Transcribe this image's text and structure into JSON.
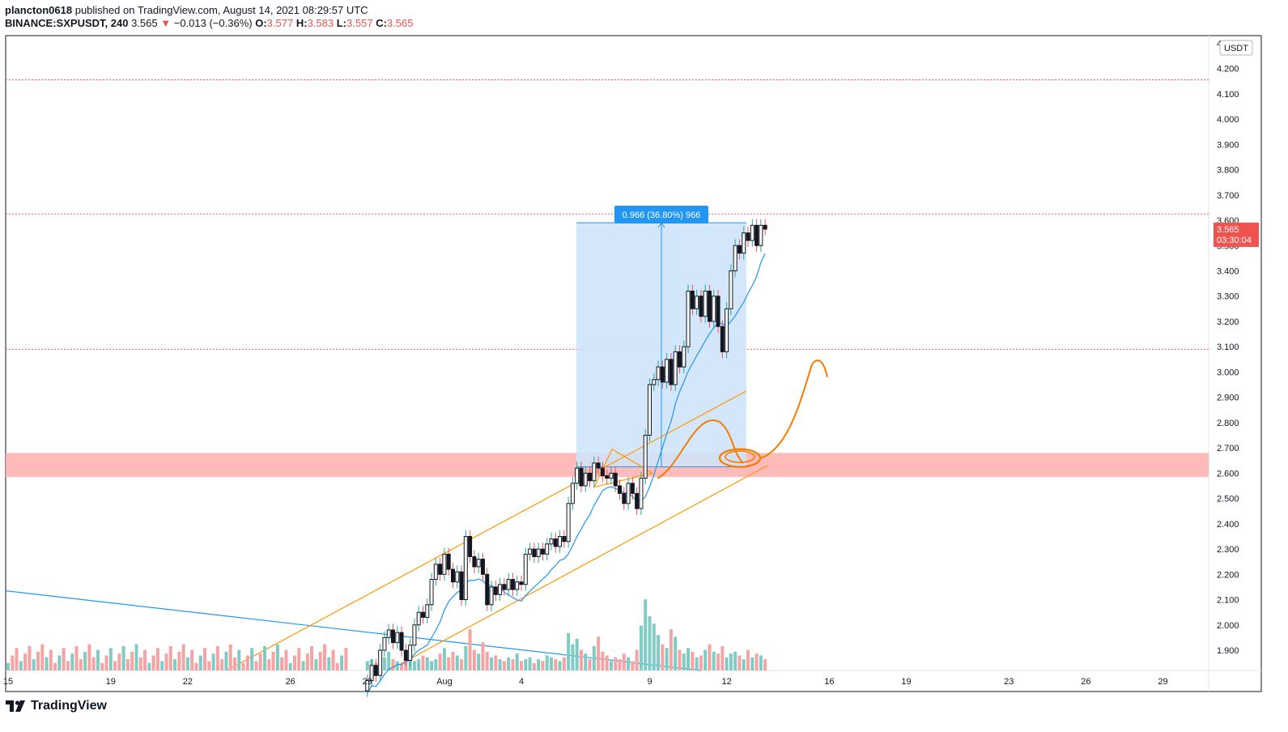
{
  "header": {
    "publisher": "plancton0618",
    "published_text": "published on TradingView.com, August 14, 2021 08:29:57 UTC",
    "symbol": "BINANCE:SXPUSDT, 240",
    "last": "3.565",
    "change_arrow": "▼",
    "change": "−0.013 (−0.36%)",
    "open_label": "O:",
    "open": "3.577",
    "high_label": "H:",
    "high": "3.583",
    "low_label": "L:",
    "low": "3.557",
    "close_label": "C:",
    "close": "3.565"
  },
  "footer": {
    "brand": "TradingView",
    "logo_icon": "tradingview-logo-icon"
  },
  "colors": {
    "up": "#26a69a",
    "down": "#ef5350",
    "body": "#131722",
    "ma": "#2196f3",
    "channel": "#ff9800",
    "zone": "#ffb3b3",
    "measure": "#cfe3f8",
    "measure_label_bg": "#2196f3"
  },
  "chart_data": {
    "type": "candlestick",
    "currency": "USDT",
    "last_price": "3.565",
    "countdown": "03:30:04",
    "ylim": [
      1.82,
      4.33
    ],
    "y_ticks": [
      "1.900",
      "2.000",
      "2.100",
      "2.200",
      "2.300",
      "2.400",
      "2.500",
      "2.600",
      "2.700",
      "2.800",
      "2.900",
      "3.000",
      "3.100",
      "3.200",
      "3.300",
      "3.400",
      "3.500",
      "3.600",
      "3.700",
      "3.800",
      "3.900",
      "4.000",
      "4.100",
      "4.200",
      "4.300"
    ],
    "x_ticks": [
      {
        "label": "15",
        "day": 15
      },
      {
        "label": "19",
        "day": 19
      },
      {
        "label": "22",
        "day": 22
      },
      {
        "label": "26",
        "day": 26
      },
      {
        "label": "29",
        "day": 29
      },
      {
        "label": "Aug",
        "day": 32
      },
      {
        "label": "4",
        "day": 35
      },
      {
        "label": "9",
        "day": 40
      },
      {
        "label": "12",
        "day": 43
      },
      {
        "label": "16",
        "day": 47
      },
      {
        "label": "19",
        "day": 50
      },
      {
        "label": "23",
        "day": 54
      },
      {
        "label": "26",
        "day": 57
      },
      {
        "label": "29",
        "day": 60
      }
    ],
    "horizontal_lines": [
      4.155,
      3.625,
      3.09
    ],
    "zone": [
      2.585,
      2.68
    ],
    "measure": {
      "label": "0.966 (36.80%) 966",
      "from": 2.625,
      "to": 3.59
    },
    "candles_note": "4h candles from 2021-07-29 to 2021-08-14",
    "price_path": [
      [
        1.74,
        1.78
      ],
      [
        1.78,
        1.84
      ],
      [
        1.84,
        1.8
      ],
      [
        1.8,
        1.9
      ],
      [
        1.9,
        1.95
      ],
      [
        1.95,
        1.98
      ],
      [
        1.98,
        1.93
      ],
      [
        1.93,
        1.97
      ],
      [
        1.97,
        1.9
      ],
      [
        1.9,
        1.86
      ],
      [
        1.86,
        1.92
      ],
      [
        1.92,
        2.0
      ],
      [
        2.0,
        2.05
      ],
      [
        2.05,
        2.03
      ],
      [
        2.03,
        2.08
      ],
      [
        2.08,
        2.18
      ],
      [
        2.18,
        2.24
      ],
      [
        2.24,
        2.2
      ],
      [
        2.2,
        2.28
      ],
      [
        2.28,
        2.22
      ],
      [
        2.22,
        2.17
      ],
      [
        2.17,
        2.21
      ],
      [
        2.21,
        2.1
      ],
      [
        2.1,
        2.35
      ],
      [
        2.35,
        2.27
      ],
      [
        2.27,
        2.23
      ],
      [
        2.23,
        2.26
      ],
      [
        2.26,
        2.2
      ],
      [
        2.2,
        2.08
      ],
      [
        2.08,
        2.15
      ],
      [
        2.15,
        2.12
      ],
      [
        2.12,
        2.16
      ],
      [
        2.16,
        2.14
      ],
      [
        2.14,
        2.18
      ],
      [
        2.18,
        2.14
      ],
      [
        2.14,
        2.17
      ],
      [
        2.17,
        2.16
      ],
      [
        2.16,
        2.28
      ],
      [
        2.28,
        2.3
      ],
      [
        2.3,
        2.27
      ],
      [
        2.27,
        2.3
      ],
      [
        2.3,
        2.28
      ],
      [
        2.28,
        2.32
      ],
      [
        2.32,
        2.34
      ],
      [
        2.34,
        2.31
      ],
      [
        2.31,
        2.35
      ],
      [
        2.35,
        2.33
      ],
      [
        2.33,
        2.48
      ],
      [
        2.48,
        2.56
      ],
      [
        2.56,
        2.62
      ],
      [
        2.62,
        2.55
      ],
      [
        2.55,
        2.6
      ],
      [
        2.6,
        2.57
      ],
      [
        2.57,
        2.64
      ],
      [
        2.64,
        2.62
      ],
      [
        2.62,
        2.59
      ],
      [
        2.59,
        2.58
      ],
      [
        2.58,
        2.6
      ],
      [
        2.6,
        2.55
      ],
      [
        2.55,
        2.52
      ],
      [
        2.52,
        2.48
      ],
      [
        2.48,
        2.56
      ],
      [
        2.56,
        2.52
      ],
      [
        2.52,
        2.46
      ],
      [
        2.46,
        2.58
      ],
      [
        2.58,
        2.75
      ],
      [
        2.75,
        2.95
      ],
      [
        2.95,
        2.97
      ],
      [
        2.97,
        3.02
      ],
      [
        3.02,
        2.96
      ],
      [
        2.96,
        3.05
      ],
      [
        3.05,
        2.95
      ],
      [
        2.95,
        3.08
      ],
      [
        3.08,
        3.02
      ],
      [
        3.02,
        3.1
      ],
      [
        3.1,
        3.32
      ],
      [
        3.32,
        3.25
      ],
      [
        3.25,
        3.3
      ],
      [
        3.3,
        3.22
      ],
      [
        3.22,
        3.32
      ],
      [
        3.32,
        3.2
      ],
      [
        3.2,
        3.3
      ],
      [
        3.3,
        3.18
      ],
      [
        3.18,
        3.08
      ],
      [
        3.08,
        3.25
      ],
      [
        3.25,
        3.4
      ],
      [
        3.4,
        3.5
      ],
      [
        3.5,
        3.47
      ],
      [
        3.47,
        3.55
      ],
      [
        3.55,
        3.52
      ],
      [
        3.52,
        3.58
      ],
      [
        3.58,
        3.5
      ],
      [
        3.5,
        3.58
      ],
      [
        3.58,
        3.565
      ]
    ],
    "volume_path": [
      0.05,
      0.06,
      0.04,
      0.08,
      0.07,
      0.1,
      0.06,
      0.05,
      0.04,
      0.07,
      0.09,
      0.05,
      0.06,
      0.08,
      0.07,
      0.05,
      0.06,
      0.09,
      0.12,
      0.07,
      0.1,
      0.08,
      0.06,
      0.13,
      0.22,
      0.11,
      0.09,
      0.15,
      0.1,
      0.07,
      0.08,
      0.06,
      0.05,
      0.07,
      0.06,
      0.09,
      0.05,
      0.06,
      0.07,
      0.04,
      0.06,
      0.05,
      0.08,
      0.07,
      0.06,
      0.05,
      0.07,
      0.2,
      0.14,
      0.17,
      0.11,
      0.09,
      0.06,
      0.13,
      0.18,
      0.1,
      0.08,
      0.05,
      0.07,
      0.06,
      0.09,
      0.07,
      0.05,
      0.11,
      0.24,
      0.38,
      0.29,
      0.25,
      0.19,
      0.14,
      0.12,
      0.22,
      0.18,
      0.11,
      0.09,
      0.12,
      0.1,
      0.07,
      0.08,
      0.11,
      0.14,
      0.1,
      0.09,
      0.13,
      0.07,
      0.09,
      0.1,
      0.08,
      0.06,
      0.11,
      0.07,
      0.09,
      0.08,
      0.06
    ]
  }
}
